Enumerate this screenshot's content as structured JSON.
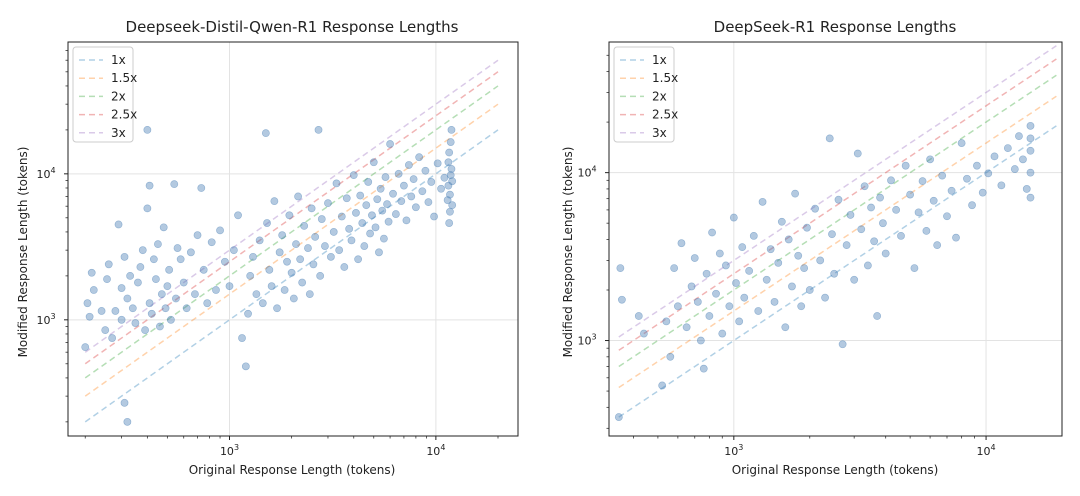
{
  "chart_data": [
    {
      "type": "scatter",
      "title": "Deepseek-Distil-Qwen-R1 Response Lengths",
      "xlabel": "Original Response Length (tokens)",
      "ylabel": "Modified Response Length (tokens)",
      "xscale": "log",
      "yscale": "log",
      "xlim": [
        165,
        25000
      ],
      "ylim": [
        160,
        80000
      ],
      "xticks": [
        {
          "value": 1000,
          "base": "10",
          "exp": "3"
        },
        {
          "value": 10000,
          "base": "10",
          "exp": "4"
        }
      ],
      "yticks": [
        {
          "value": 1000,
          "base": "10",
          "exp": "3"
        },
        {
          "value": 10000,
          "base": "10",
          "exp": "4"
        }
      ],
      "grid": true,
      "legend": "top-left",
      "reference_lines": [
        {
          "name": "1x",
          "factor": 1,
          "color": "#1f77b4"
        },
        {
          "name": "1.5x",
          "factor": 1.5,
          "color": "#ff7f0e"
        },
        {
          "name": "2x",
          "factor": 2,
          "color": "#2ca02c"
        },
        {
          "name": "2.5x",
          "factor": 2.5,
          "color": "#d62728"
        },
        {
          "name": "3x",
          "factor": 3,
          "color": "#9467bd"
        }
      ],
      "reference_x_range": [
        200,
        20000
      ],
      "point_color": "#4a7fb5",
      "points": [
        [
          200,
          650
        ],
        [
          205,
          1300
        ],
        [
          210,
          1050
        ],
        [
          215,
          2100
        ],
        [
          220,
          1600
        ],
        [
          240,
          1150
        ],
        [
          250,
          850
        ],
        [
          255,
          1900
        ],
        [
          260,
          2400
        ],
        [
          270,
          750
        ],
        [
          280,
          1150
        ],
        [
          290,
          4500
        ],
        [
          300,
          1000
        ],
        [
          300,
          1650
        ],
        [
          310,
          2700
        ],
        [
          310,
          270
        ],
        [
          320,
          200
        ],
        [
          320,
          1400
        ],
        [
          330,
          2000
        ],
        [
          340,
          1200
        ],
        [
          350,
          950
        ],
        [
          360,
          1800
        ],
        [
          370,
          2300
        ],
        [
          380,
          3000
        ],
        [
          390,
          850
        ],
        [
          400,
          5800
        ],
        [
          400,
          20000
        ],
        [
          410,
          8300
        ],
        [
          410,
          1300
        ],
        [
          420,
          1100
        ],
        [
          430,
          2600
        ],
        [
          440,
          1900
        ],
        [
          450,
          3300
        ],
        [
          460,
          900
        ],
        [
          470,
          1500
        ],
        [
          480,
          4300
        ],
        [
          490,
          1200
        ],
        [
          500,
          1700
        ],
        [
          510,
          2200
        ],
        [
          520,
          1000
        ],
        [
          540,
          8500
        ],
        [
          550,
          1400
        ],
        [
          560,
          3100
        ],
        [
          580,
          2600
        ],
        [
          600,
          1800
        ],
        [
          620,
          1200
        ],
        [
          650,
          2900
        ],
        [
          680,
          1500
        ],
        [
          700,
          3800
        ],
        [
          730,
          8000
        ],
        [
          750,
          2200
        ],
        [
          780,
          1300
        ],
        [
          820,
          3400
        ],
        [
          860,
          1600
        ],
        [
          900,
          4100
        ],
        [
          950,
          2500
        ],
        [
          1000,
          1700
        ],
        [
          1050,
          3000
        ],
        [
          1100,
          5200
        ],
        [
          1150,
          750
        ],
        [
          1200,
          480
        ],
        [
          1230,
          1100
        ],
        [
          1260,
          2000
        ],
        [
          1300,
          2700
        ],
        [
          1350,
          1500
        ],
        [
          1400,
          3500
        ],
        [
          1450,
          1300
        ],
        [
          1500,
          19000
        ],
        [
          1520,
          4600
        ],
        [
          1560,
          2200
        ],
        [
          1600,
          1700
        ],
        [
          1650,
          6500
        ],
        [
          1700,
          1200
        ],
        [
          1750,
          2900
        ],
        [
          1800,
          3800
        ],
        [
          1850,
          1600
        ],
        [
          1900,
          2500
        ],
        [
          1950,
          5200
        ],
        [
          2000,
          2100
        ],
        [
          2050,
          1400
        ],
        [
          2100,
          3300
        ],
        [
          2150,
          7000
        ],
        [
          2200,
          2600
        ],
        [
          2250,
          1800
        ],
        [
          2300,
          4400
        ],
        [
          2400,
          3100
        ],
        [
          2450,
          1500
        ],
        [
          2500,
          5800
        ],
        [
          2550,
          2400
        ],
        [
          2600,
          3700
        ],
        [
          2700,
          20000
        ],
        [
          2750,
          2000
        ],
        [
          2800,
          4900
        ],
        [
          2900,
          3200
        ],
        [
          3000,
          6300
        ],
        [
          3100,
          2700
        ],
        [
          3200,
          4000
        ],
        [
          3300,
          8600
        ],
        [
          3400,
          3000
        ],
        [
          3500,
          5100
        ],
        [
          3600,
          2300
        ],
        [
          3700,
          6800
        ],
        [
          3800,
          4200
        ],
        [
          3900,
          3500
        ],
        [
          4000,
          9800
        ],
        [
          4100,
          5400
        ],
        [
          4200,
          2600
        ],
        [
          4300,
          7100
        ],
        [
          4400,
          4600
        ],
        [
          4500,
          3200
        ],
        [
          4600,
          6100
        ],
        [
          4700,
          8800
        ],
        [
          4800,
          3900
        ],
        [
          4900,
          5200
        ],
        [
          5000,
          12000
        ],
        [
          5100,
          4300
        ],
        [
          5200,
          6700
        ],
        [
          5300,
          2900
        ],
        [
          5400,
          7900
        ],
        [
          5500,
          5600
        ],
        [
          5600,
          3600
        ],
        [
          5700,
          9500
        ],
        [
          5800,
          6200
        ],
        [
          5900,
          4700
        ],
        [
          6000,
          16000
        ],
        [
          6200,
          7300
        ],
        [
          6400,
          5300
        ],
        [
          6600,
          10000
        ],
        [
          6800,
          6500
        ],
        [
          7000,
          8300
        ],
        [
          7200,
          4800
        ],
        [
          7400,
          11500
        ],
        [
          7600,
          7000
        ],
        [
          7800,
          9200
        ],
        [
          8000,
          5900
        ],
        [
          8300,
          13000
        ],
        [
          8600,
          7600
        ],
        [
          8900,
          10500
        ],
        [
          9200,
          6400
        ],
        [
          9500,
          8800
        ],
        [
          9800,
          5100
        ],
        [
          10200,
          11800
        ],
        [
          10600,
          7900
        ],
        [
          11000,
          9400
        ],
        [
          11400,
          6600
        ],
        [
          11500,
          8300
        ],
        [
          11500,
          12000
        ],
        [
          11600,
          14000
        ],
        [
          11600,
          4600
        ],
        [
          11700,
          5500
        ],
        [
          11700,
          7200
        ],
        [
          11800,
          9800
        ],
        [
          11800,
          16500
        ],
        [
          11900,
          20000
        ],
        [
          11900,
          10800
        ],
        [
          12000,
          6100
        ],
        [
          12000,
          8900
        ]
      ]
    },
    {
      "type": "scatter",
      "title": "DeepSeek-R1 Response Lengths",
      "xlabel": "Original Response Length (tokens)",
      "ylabel": "Modified Response Length (tokens)",
      "xscale": "log",
      "yscale": "log",
      "xlim": [
        320,
        20000
      ],
      "ylim": [
        270,
        60000
      ],
      "xticks": [
        {
          "value": 1000,
          "base": "10",
          "exp": "3"
        },
        {
          "value": 10000,
          "base": "10",
          "exp": "4"
        }
      ],
      "yticks": [
        {
          "value": 1000,
          "base": "10",
          "exp": "3"
        },
        {
          "value": 10000,
          "base": "10",
          "exp": "4"
        }
      ],
      "grid": true,
      "legend": "top-left",
      "reference_lines": [
        {
          "name": "1x",
          "factor": 1,
          "color": "#1f77b4"
        },
        {
          "name": "1.5x",
          "factor": 1.5,
          "color": "#ff7f0e"
        },
        {
          "name": "2x",
          "factor": 2,
          "color": "#2ca02c"
        },
        {
          "name": "2.5x",
          "factor": 2.5,
          "color": "#d62728"
        },
        {
          "name": "3x",
          "factor": 3,
          "color": "#9467bd"
        }
      ],
      "reference_x_range": [
        350,
        19000
      ],
      "point_color": "#4a7fb5",
      "points": [
        [
          350,
          350
        ],
        [
          355,
          2700
        ],
        [
          360,
          1750
        ],
        [
          420,
          1400
        ],
        [
          440,
          1100
        ],
        [
          520,
          540
        ],
        [
          540,
          1300
        ],
        [
          560,
          800
        ],
        [
          580,
          2700
        ],
        [
          600,
          1600
        ],
        [
          620,
          3800
        ],
        [
          650,
          1200
        ],
        [
          680,
          2100
        ],
        [
          700,
          3100
        ],
        [
          720,
          1700
        ],
        [
          740,
          1000
        ],
        [
          760,
          680
        ],
        [
          780,
          2500
        ],
        [
          800,
          1400
        ],
        [
          820,
          4400
        ],
        [
          850,
          1900
        ],
        [
          880,
          3300
        ],
        [
          900,
          1100
        ],
        [
          930,
          2800
        ],
        [
          960,
          1600
        ],
        [
          1000,
          5400
        ],
        [
          1020,
          2200
        ],
        [
          1050,
          1300
        ],
        [
          1080,
          3600
        ],
        [
          1100,
          1800
        ],
        [
          1150,
          2600
        ],
        [
          1200,
          4200
        ],
        [
          1250,
          1500
        ],
        [
          1300,
          6700
        ],
        [
          1350,
          2300
        ],
        [
          1400,
          3500
        ],
        [
          1450,
          1700
        ],
        [
          1500,
          2900
        ],
        [
          1550,
          5100
        ],
        [
          1600,
          1200
        ],
        [
          1650,
          4000
        ],
        [
          1700,
          2100
        ],
        [
          1750,
          7500
        ],
        [
          1800,
          3200
        ],
        [
          1850,
          1600
        ],
        [
          1900,
          2700
        ],
        [
          1950,
          4700
        ],
        [
          2000,
          2000
        ],
        [
          2100,
          6100
        ],
        [
          2200,
          3000
        ],
        [
          2300,
          1800
        ],
        [
          2400,
          16000
        ],
        [
          2450,
          4300
        ],
        [
          2500,
          2500
        ],
        [
          2600,
          6900
        ],
        [
          2700,
          950
        ],
        [
          2800,
          3700
        ],
        [
          2900,
          5600
        ],
        [
          3000,
          2300
        ],
        [
          3100,
          13000
        ],
        [
          3200,
          4600
        ],
        [
          3300,
          8300
        ],
        [
          3400,
          2800
        ],
        [
          3500,
          6200
        ],
        [
          3600,
          3900
        ],
        [
          3700,
          1400
        ],
        [
          3800,
          7100
        ],
        [
          3900,
          5000
        ],
        [
          4000,
          3300
        ],
        [
          4200,
          9000
        ],
        [
          4400,
          6000
        ],
        [
          4600,
          4200
        ],
        [
          4800,
          11000
        ],
        [
          5000,
          7400
        ],
        [
          5200,
          2700
        ],
        [
          5400,
          5800
        ],
        [
          5600,
          8900
        ],
        [
          5800,
          4500
        ],
        [
          6000,
          12000
        ],
        [
          6200,
          6800
        ],
        [
          6400,
          3700
        ],
        [
          6700,
          9600
        ],
        [
          7000,
          5500
        ],
        [
          7300,
          7800
        ],
        [
          7600,
          4100
        ],
        [
          8000,
          15000
        ],
        [
          8400,
          9200
        ],
        [
          8800,
          6400
        ],
        [
          9200,
          11000
        ],
        [
          9700,
          7600
        ],
        [
          10200,
          9900
        ],
        [
          10800,
          12500
        ],
        [
          11500,
          8400
        ],
        [
          12200,
          14000
        ],
        [
          13000,
          10500
        ],
        [
          13500,
          16500
        ],
        [
          14000,
          12000
        ],
        [
          14500,
          8000
        ],
        [
          15000,
          19000
        ],
        [
          15000,
          7100
        ],
        [
          15000,
          13500
        ],
        [
          15000,
          10000
        ],
        [
          15000,
          16000
        ]
      ]
    }
  ]
}
